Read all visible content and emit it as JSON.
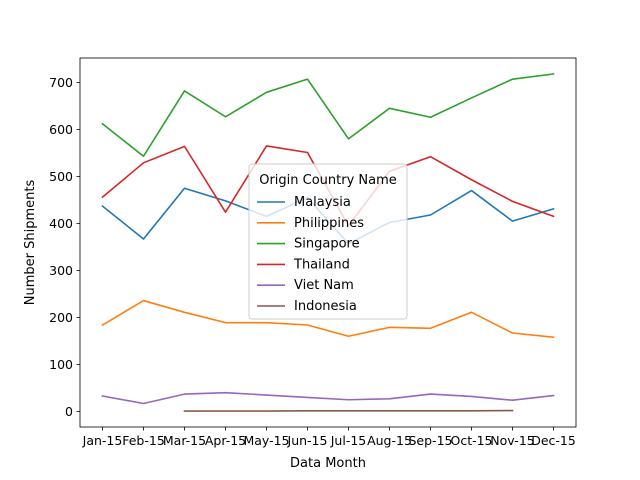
{
  "chart_data": {
    "type": "line",
    "title": "",
    "xlabel": "Data Month",
    "ylabel": "Number Shipments",
    "categories": [
      "Jan-15",
      "Feb-15",
      "Mar-15",
      "Apr-15",
      "May-15",
      "Jun-15",
      "Jul-15",
      "Aug-15",
      "Sep-15",
      "Oct-15",
      "Nov-15",
      "Dec-15"
    ],
    "ylim": [
      -33,
      752
    ],
    "yticks": [
      0,
      100,
      200,
      300,
      400,
      500,
      600,
      700
    ],
    "grid": false,
    "legend": {
      "title": "Origin Country Name",
      "placement": "center"
    },
    "series": [
      {
        "name": "Malaysia",
        "color": "#1f77b4",
        "values": [
          437,
          367,
          475,
          448,
          415,
          455,
          357,
          402,
          418,
          470,
          405,
          431
        ]
      },
      {
        "name": "Philippines",
        "color": "#ff7f0e",
        "values": [
          184,
          236,
          211,
          189,
          189,
          184,
          160,
          179,
          177,
          211,
          167,
          158
        ]
      },
      {
        "name": "Singapore",
        "color": "#2ca02c",
        "values": [
          612,
          543,
          682,
          627,
          679,
          707,
          580,
          645,
          626,
          667,
          707,
          718
        ]
      },
      {
        "name": "Thailand",
        "color": "#d62728",
        "values": [
          456,
          529,
          564,
          424,
          565,
          551,
          395,
          511,
          542,
          493,
          447,
          415
        ]
      },
      {
        "name": "Viet Nam",
        "color": "#9467bd",
        "values": [
          33,
          17,
          37,
          40,
          35,
          30,
          25,
          27,
          37,
          32,
          24,
          34
        ]
      },
      {
        "name": "Indonesia",
        "color": "#8c564b",
        "values": [
          null,
          null,
          1,
          1,
          1,
          1.5,
          1.5,
          1.5,
          1.5,
          1.5,
          2,
          null
        ]
      }
    ]
  }
}
